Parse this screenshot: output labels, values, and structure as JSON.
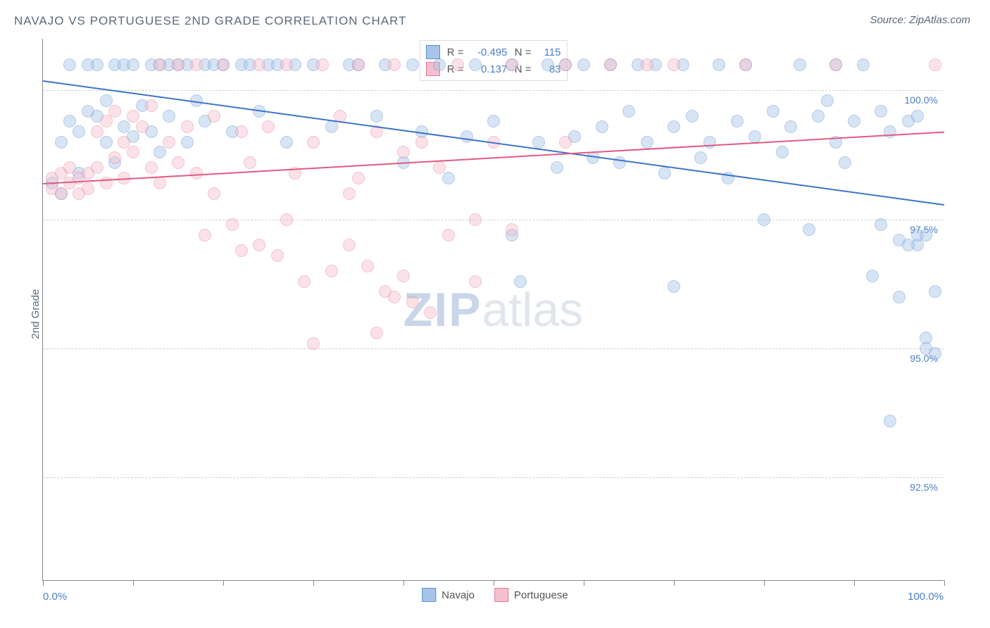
{
  "chart": {
    "type": "scatter",
    "title": "NAVAJO VS PORTUGUESE 2ND GRADE CORRELATION CHART",
    "source": "Source: ZipAtlas.com",
    "ylabel": "2nd Grade",
    "watermark_bold": "ZIP",
    "watermark_light": "atlas",
    "background_color": "#ffffff",
    "grid_color": "#d0d0d0",
    "axis_color": "#888888",
    "title_color": "#5a6b7a",
    "label_color": "#5a6b7a",
    "tick_label_color": "#4a7fc4",
    "title_fontsize": 17,
    "label_fontsize": 15,
    "tick_fontsize": 14,
    "xlim": [
      0,
      100
    ],
    "ylim": [
      90.5,
      101.0
    ],
    "x_ticks": [
      0,
      10,
      20,
      30,
      40,
      50,
      60,
      70,
      80,
      90,
      100
    ],
    "x_tick_labels": {
      "0": "0.0%",
      "100": "100.0%"
    },
    "y_gridlines": [
      92.5,
      95.0,
      97.5,
      100.0
    ],
    "y_tick_labels": [
      "92.5%",
      "95.0%",
      "97.5%",
      "100.0%"
    ],
    "marker_radius": 9,
    "marker_opacity": 0.45,
    "marker_stroke_opacity": 0.9,
    "series": [
      {
        "name": "Navajo",
        "color_fill": "#a8c4e8",
        "color_stroke": "#5a8fd4",
        "R": "-0.495",
        "N": "115",
        "trend": {
          "x1": 0,
          "y1": 100.2,
          "x2": 100,
          "y2": 97.8,
          "color": "#3d74c7",
          "width": 2
        },
        "points": [
          [
            1,
            98.2
          ],
          [
            2,
            99.0
          ],
          [
            2,
            98.0
          ],
          [
            3,
            100.5
          ],
          [
            3,
            99.4
          ],
          [
            4,
            98.4
          ],
          [
            4,
            99.2
          ],
          [
            5,
            100.5
          ],
          [
            5,
            99.6
          ],
          [
            6,
            99.5
          ],
          [
            6,
            100.5
          ],
          [
            7,
            99.8
          ],
          [
            7,
            99.0
          ],
          [
            8,
            100.5
          ],
          [
            8,
            98.6
          ],
          [
            9,
            99.3
          ],
          [
            9,
            100.5
          ],
          [
            10,
            100.5
          ],
          [
            10,
            99.1
          ],
          [
            11,
            99.7
          ],
          [
            12,
            100.5
          ],
          [
            12,
            99.2
          ],
          [
            13,
            100.5
          ],
          [
            13,
            98.8
          ],
          [
            14,
            100.5
          ],
          [
            14,
            99.5
          ],
          [
            15,
            100.5
          ],
          [
            16,
            99.0
          ],
          [
            16,
            100.5
          ],
          [
            17,
            99.8
          ],
          [
            18,
            100.5
          ],
          [
            18,
            99.4
          ],
          [
            19,
            100.5
          ],
          [
            20,
            100.5
          ],
          [
            21,
            99.2
          ],
          [
            22,
            100.5
          ],
          [
            23,
            100.5
          ],
          [
            24,
            99.6
          ],
          [
            25,
            100.5
          ],
          [
            26,
            100.5
          ],
          [
            27,
            99.0
          ],
          [
            28,
            100.5
          ],
          [
            30,
            100.5
          ],
          [
            32,
            99.3
          ],
          [
            34,
            100.5
          ],
          [
            35,
            100.5
          ],
          [
            37,
            99.5
          ],
          [
            38,
            100.5
          ],
          [
            40,
            98.6
          ],
          [
            41,
            100.5
          ],
          [
            42,
            99.2
          ],
          [
            44,
            100.5
          ],
          [
            45,
            98.3
          ],
          [
            47,
            99.1
          ],
          [
            48,
            100.5
          ],
          [
            50,
            99.4
          ],
          [
            52,
            97.2
          ],
          [
            52,
            100.5
          ],
          [
            53,
            96.3
          ],
          [
            55,
            99.0
          ],
          [
            56,
            100.5
          ],
          [
            57,
            98.5
          ],
          [
            58,
            100.5
          ],
          [
            59,
            99.1
          ],
          [
            60,
            100.5
          ],
          [
            61,
            98.7
          ],
          [
            62,
            99.3
          ],
          [
            63,
            100.5
          ],
          [
            64,
            98.6
          ],
          [
            65,
            99.6
          ],
          [
            66,
            100.5
          ],
          [
            67,
            99.0
          ],
          [
            68,
            100.5
          ],
          [
            69,
            98.4
          ],
          [
            70,
            99.3
          ],
          [
            70,
            96.2
          ],
          [
            71,
            100.5
          ],
          [
            72,
            99.5
          ],
          [
            73,
            98.7
          ],
          [
            74,
            99.0
          ],
          [
            75,
            100.5
          ],
          [
            76,
            98.3
          ],
          [
            77,
            99.4
          ],
          [
            78,
            100.5
          ],
          [
            79,
            99.1
          ],
          [
            80,
            97.5
          ],
          [
            81,
            99.6
          ],
          [
            82,
            98.8
          ],
          [
            83,
            99.3
          ],
          [
            84,
            100.5
          ],
          [
            85,
            97.3
          ],
          [
            86,
            99.5
          ],
          [
            87,
            99.8
          ],
          [
            88,
            100.5
          ],
          [
            89,
            98.6
          ],
          [
            90,
            99.4
          ],
          [
            91,
            100.5
          ],
          [
            92,
            96.4
          ],
          [
            93,
            99.6
          ],
          [
            94,
            99.2
          ],
          [
            95,
            97.1
          ],
          [
            95,
            96.0
          ],
          [
            96,
            99.4
          ],
          [
            97,
            97.0
          ],
          [
            97,
            97.2
          ],
          [
            97,
            99.5
          ],
          [
            98,
            95.2
          ],
          [
            98,
            97.2
          ],
          [
            98,
            95.0
          ],
          [
            99,
            94.9
          ],
          [
            99,
            96.1
          ],
          [
            94,
            93.6
          ],
          [
            96,
            97.0
          ],
          [
            93,
            97.4
          ],
          [
            88,
            99.0
          ]
        ]
      },
      {
        "name": "Portuguese",
        "color_fill": "#f4c0cd",
        "color_stroke": "#e87b98",
        "R": "0.137",
        "N": "83",
        "trend": {
          "x1": 0,
          "y1": 98.2,
          "x2": 100,
          "y2": 99.2,
          "color": "#e15a80",
          "width": 2
        },
        "points": [
          [
            1,
            98.1
          ],
          [
            1,
            98.3
          ],
          [
            2,
            98.0
          ],
          [
            2,
            98.4
          ],
          [
            3,
            98.2
          ],
          [
            3,
            98.5
          ],
          [
            4,
            98.3
          ],
          [
            4,
            98.0
          ],
          [
            5,
            98.4
          ],
          [
            5,
            98.1
          ],
          [
            6,
            98.5
          ],
          [
            6,
            99.2
          ],
          [
            7,
            98.2
          ],
          [
            7,
            99.4
          ],
          [
            8,
            99.6
          ],
          [
            8,
            98.7
          ],
          [
            9,
            99.0
          ],
          [
            9,
            98.3
          ],
          [
            10,
            99.5
          ],
          [
            10,
            98.8
          ],
          [
            11,
            99.3
          ],
          [
            12,
            98.5
          ],
          [
            12,
            99.7
          ],
          [
            13,
            100.5
          ],
          [
            13,
            98.2
          ],
          [
            14,
            99.0
          ],
          [
            15,
            98.6
          ],
          [
            15,
            100.5
          ],
          [
            16,
            99.3
          ],
          [
            17,
            98.4
          ],
          [
            17,
            100.5
          ],
          [
            18,
            97.2
          ],
          [
            19,
            99.5
          ],
          [
            19,
            98.0
          ],
          [
            20,
            100.5
          ],
          [
            21,
            97.4
          ],
          [
            22,
            96.9
          ],
          [
            22,
            99.2
          ],
          [
            23,
            98.6
          ],
          [
            24,
            97.0
          ],
          [
            24,
            100.5
          ],
          [
            25,
            99.3
          ],
          [
            26,
            96.8
          ],
          [
            27,
            100.5
          ],
          [
            27,
            97.5
          ],
          [
            28,
            98.4
          ],
          [
            29,
            96.3
          ],
          [
            30,
            99.0
          ],
          [
            30,
            95.1
          ],
          [
            31,
            100.5
          ],
          [
            32,
            96.5
          ],
          [
            33,
            99.5
          ],
          [
            34,
            97.0
          ],
          [
            35,
            98.3
          ],
          [
            35,
            100.5
          ],
          [
            36,
            96.6
          ],
          [
            37,
            95.3
          ],
          [
            37,
            99.2
          ],
          [
            38,
            96.1
          ],
          [
            39,
            100.5
          ],
          [
            39,
            96.0
          ],
          [
            40,
            98.8
          ],
          [
            40,
            96.4
          ],
          [
            41,
            95.9
          ],
          [
            42,
            99.0
          ],
          [
            43,
            95.7
          ],
          [
            44,
            98.5
          ],
          [
            45,
            97.2
          ],
          [
            46,
            100.5
          ],
          [
            48,
            97.5
          ],
          [
            48,
            96.3
          ],
          [
            50,
            99.0
          ],
          [
            52,
            97.3
          ],
          [
            52,
            100.5
          ],
          [
            58,
            100.5
          ],
          [
            58,
            99.0
          ],
          [
            63,
            100.5
          ],
          [
            67,
            100.5
          ],
          [
            70,
            100.5
          ],
          [
            78,
            100.5
          ],
          [
            88,
            100.5
          ],
          [
            99,
            100.5
          ],
          [
            34,
            98.0
          ]
        ]
      }
    ],
    "legend_bottom": [
      "Navajo",
      "Portuguese"
    ]
  }
}
